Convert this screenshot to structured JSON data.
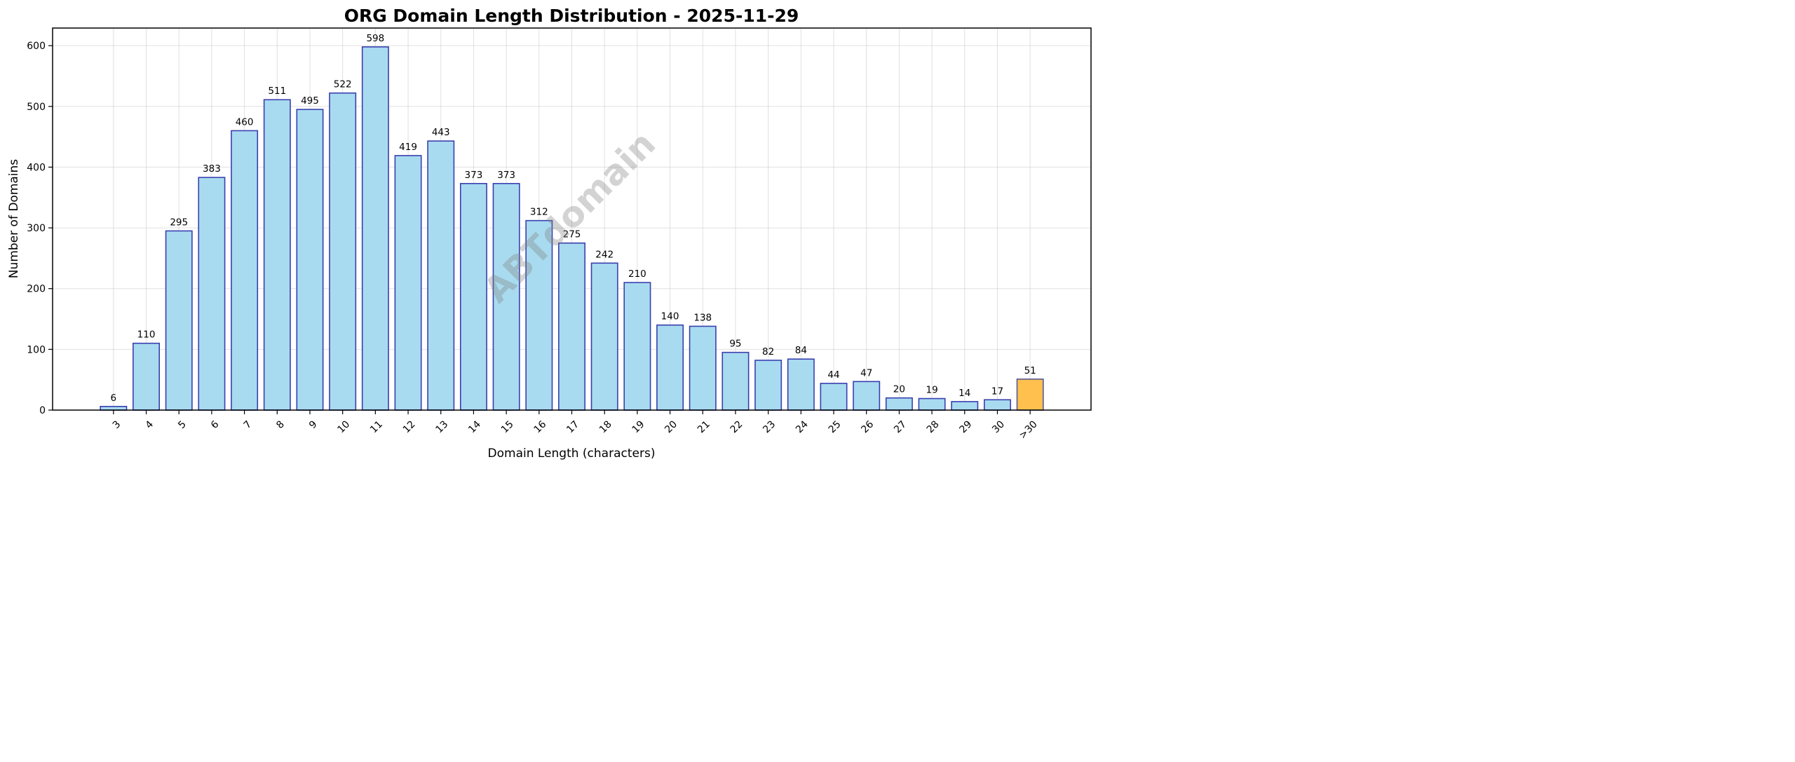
{
  "chart_data": {
    "type": "bar",
    "title": "ORG Domain Length Distribution - 2025-11-29",
    "xlabel": "Domain Length (characters)",
    "ylabel": "Number of Domains",
    "categories": [
      "3",
      "4",
      "5",
      "6",
      "7",
      "8",
      "9",
      "10",
      "11",
      "12",
      "13",
      "14",
      "15",
      "16",
      "17",
      "18",
      "19",
      "20",
      "21",
      "22",
      "23",
      "24",
      "25",
      "26",
      "27",
      "28",
      "29",
      "30",
      ">30"
    ],
    "values": [
      6,
      110,
      295,
      383,
      460,
      511,
      495,
      522,
      598,
      419,
      443,
      373,
      373,
      312,
      275,
      242,
      210,
      140,
      138,
      95,
      82,
      84,
      44,
      47,
      20,
      19,
      14,
      17,
      51
    ],
    "ylim": [
      0,
      629
    ],
    "yticks": [
      0,
      100,
      200,
      300,
      400,
      500,
      600
    ],
    "grid": true,
    "colors": {
      "bar": "#a8dbef",
      "bar_edge": "#3a3fb0",
      "highlight_bar": "#ffc04d",
      "highlight_edge": "#555a9a"
    },
    "highlight_category": ">30",
    "watermark": "ABTdomain"
  }
}
